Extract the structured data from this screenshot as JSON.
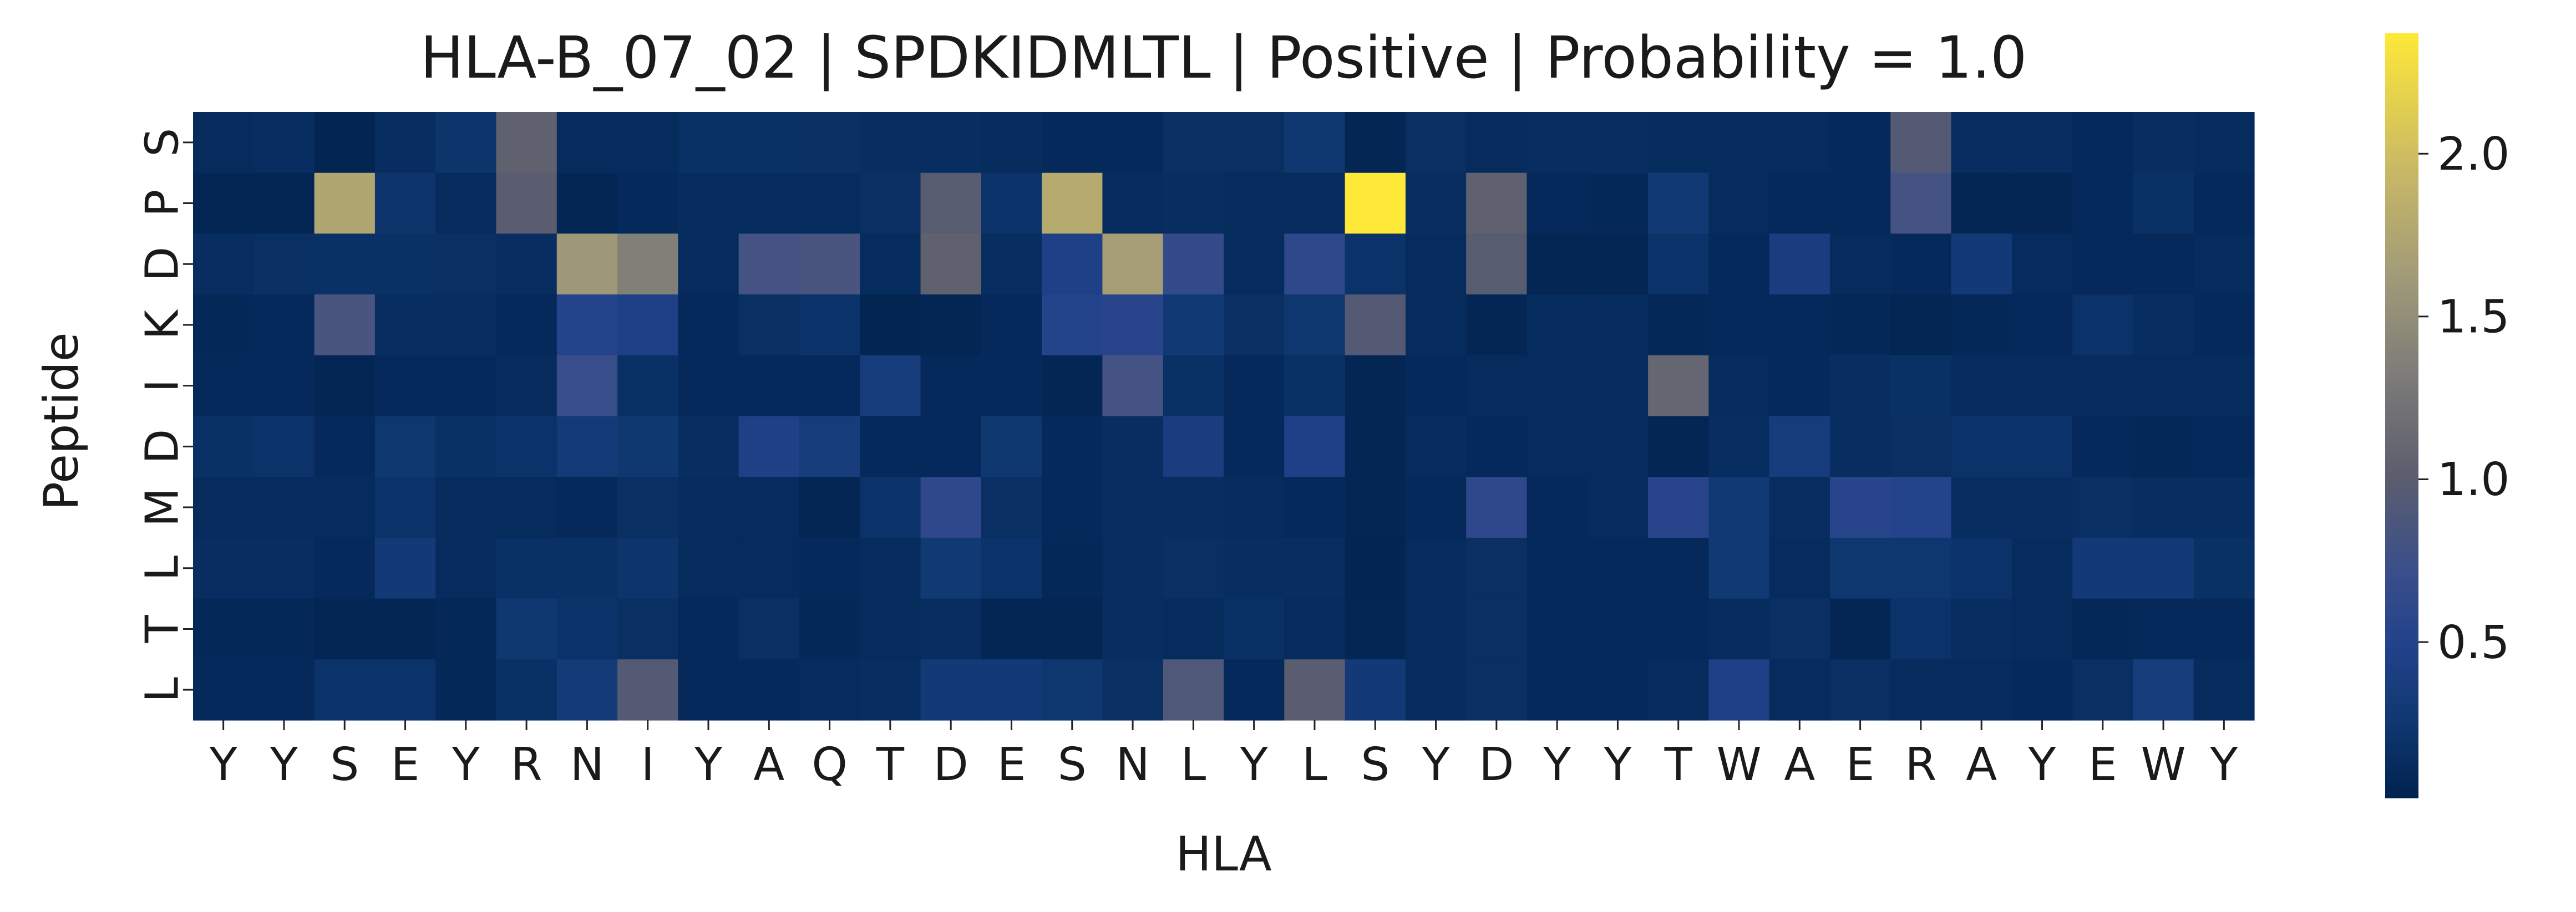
{
  "chart_data": {
    "type": "heatmap",
    "title": "HLA-B_07_02 | SPDKIDMLTL | Positive | Probability = 1.0",
    "xlabel": "HLA",
    "ylabel": "Peptide",
    "x_tick_labels": [
      "Y",
      "Y",
      "S",
      "E",
      "Y",
      "R",
      "N",
      "I",
      "Y",
      "A",
      "Q",
      "T",
      "D",
      "E",
      "S",
      "N",
      "L",
      "Y",
      "L",
      "S",
      "Y",
      "D",
      "Y",
      "Y",
      "T",
      "W",
      "A",
      "E",
      "R",
      "A",
      "Y",
      "E",
      "W",
      "Y"
    ],
    "y_tick_labels": [
      "S",
      "P",
      "D",
      "K",
      "I",
      "D",
      "M",
      "L",
      "T",
      "L"
    ],
    "colorbar": {
      "colormap": "cividis",
      "vmin": 0.02,
      "vmax": 2.37,
      "ticks": [
        0.5,
        1.0,
        1.5,
        2.0
      ],
      "tick_labels": [
        "0.5",
        "1.0",
        "1.5",
        "2.0"
      ]
    },
    "values": [
      [
        0.12,
        0.14,
        0.05,
        0.15,
        0.22,
        1.05,
        0.12,
        0.12,
        0.18,
        0.18,
        0.17,
        0.14,
        0.14,
        0.12,
        0.1,
        0.1,
        0.16,
        0.16,
        0.25,
        0.06,
        0.16,
        0.12,
        0.14,
        0.14,
        0.12,
        0.12,
        0.12,
        0.1,
        0.95,
        0.14,
        0.14,
        0.1,
        0.14,
        0.12
      ],
      [
        0.06,
        0.06,
        1.75,
        0.22,
        0.12,
        1.0,
        0.06,
        0.1,
        0.12,
        0.12,
        0.12,
        0.16,
        0.98,
        0.2,
        1.8,
        0.12,
        0.14,
        0.12,
        0.12,
        2.37,
        0.14,
        1.05,
        0.1,
        0.08,
        0.28,
        0.12,
        0.1,
        0.1,
        0.8,
        0.06,
        0.06,
        0.1,
        0.18,
        0.1
      ],
      [
        0.14,
        0.16,
        0.18,
        0.18,
        0.16,
        0.14,
        1.6,
        1.35,
        0.12,
        0.8,
        0.85,
        0.12,
        1.05,
        0.14,
        0.45,
        1.65,
        0.65,
        0.12,
        0.6,
        0.2,
        0.12,
        0.98,
        0.06,
        0.06,
        0.2,
        0.1,
        0.38,
        0.12,
        0.1,
        0.3,
        0.12,
        0.1,
        0.1,
        0.12
      ],
      [
        0.08,
        0.1,
        0.85,
        0.14,
        0.14,
        0.1,
        0.5,
        0.45,
        0.1,
        0.16,
        0.2,
        0.05,
        0.06,
        0.1,
        0.5,
        0.55,
        0.28,
        0.16,
        0.24,
        0.95,
        0.12,
        0.06,
        0.12,
        0.12,
        0.08,
        0.1,
        0.1,
        0.08,
        0.06,
        0.08,
        0.1,
        0.2,
        0.14,
        0.1
      ],
      [
        0.1,
        0.1,
        0.06,
        0.1,
        0.1,
        0.12,
        0.7,
        0.18,
        0.1,
        0.1,
        0.1,
        0.35,
        0.1,
        0.1,
        0.06,
        0.8,
        0.18,
        0.1,
        0.18,
        0.06,
        0.1,
        0.12,
        0.12,
        0.12,
        1.1,
        0.12,
        0.1,
        0.14,
        0.18,
        0.12,
        0.12,
        0.12,
        0.12,
        0.12
      ],
      [
        0.18,
        0.2,
        0.1,
        0.24,
        0.18,
        0.2,
        0.32,
        0.25,
        0.14,
        0.45,
        0.35,
        0.1,
        0.1,
        0.25,
        0.1,
        0.14,
        0.38,
        0.1,
        0.45,
        0.06,
        0.12,
        0.1,
        0.12,
        0.12,
        0.06,
        0.14,
        0.35,
        0.14,
        0.16,
        0.2,
        0.2,
        0.1,
        0.08,
        0.1
      ],
      [
        0.12,
        0.12,
        0.12,
        0.2,
        0.12,
        0.12,
        0.1,
        0.16,
        0.12,
        0.12,
        0.06,
        0.2,
        0.6,
        0.16,
        0.1,
        0.14,
        0.14,
        0.12,
        0.1,
        0.06,
        0.1,
        0.6,
        0.1,
        0.12,
        0.55,
        0.28,
        0.14,
        0.55,
        0.5,
        0.14,
        0.14,
        0.16,
        0.14,
        0.14
      ],
      [
        0.14,
        0.14,
        0.1,
        0.3,
        0.12,
        0.18,
        0.18,
        0.22,
        0.12,
        0.12,
        0.1,
        0.12,
        0.28,
        0.2,
        0.08,
        0.14,
        0.16,
        0.14,
        0.14,
        0.05,
        0.12,
        0.16,
        0.1,
        0.1,
        0.1,
        0.28,
        0.12,
        0.24,
        0.24,
        0.2,
        0.12,
        0.3,
        0.3,
        0.18
      ],
      [
        0.08,
        0.08,
        0.06,
        0.06,
        0.08,
        0.25,
        0.2,
        0.16,
        0.1,
        0.16,
        0.08,
        0.12,
        0.14,
        0.06,
        0.06,
        0.14,
        0.12,
        0.18,
        0.12,
        0.06,
        0.12,
        0.16,
        0.1,
        0.1,
        0.1,
        0.12,
        0.16,
        0.06,
        0.2,
        0.14,
        0.12,
        0.08,
        0.1,
        0.1
      ],
      [
        0.1,
        0.1,
        0.2,
        0.2,
        0.08,
        0.18,
        0.32,
        0.95,
        0.1,
        0.1,
        0.12,
        0.14,
        0.3,
        0.3,
        0.24,
        0.16,
        0.9,
        0.1,
        1.0,
        0.3,
        0.12,
        0.16,
        0.1,
        0.1,
        0.12,
        0.45,
        0.12,
        0.16,
        0.12,
        0.12,
        0.1,
        0.16,
        0.35,
        0.12
      ]
    ]
  }
}
